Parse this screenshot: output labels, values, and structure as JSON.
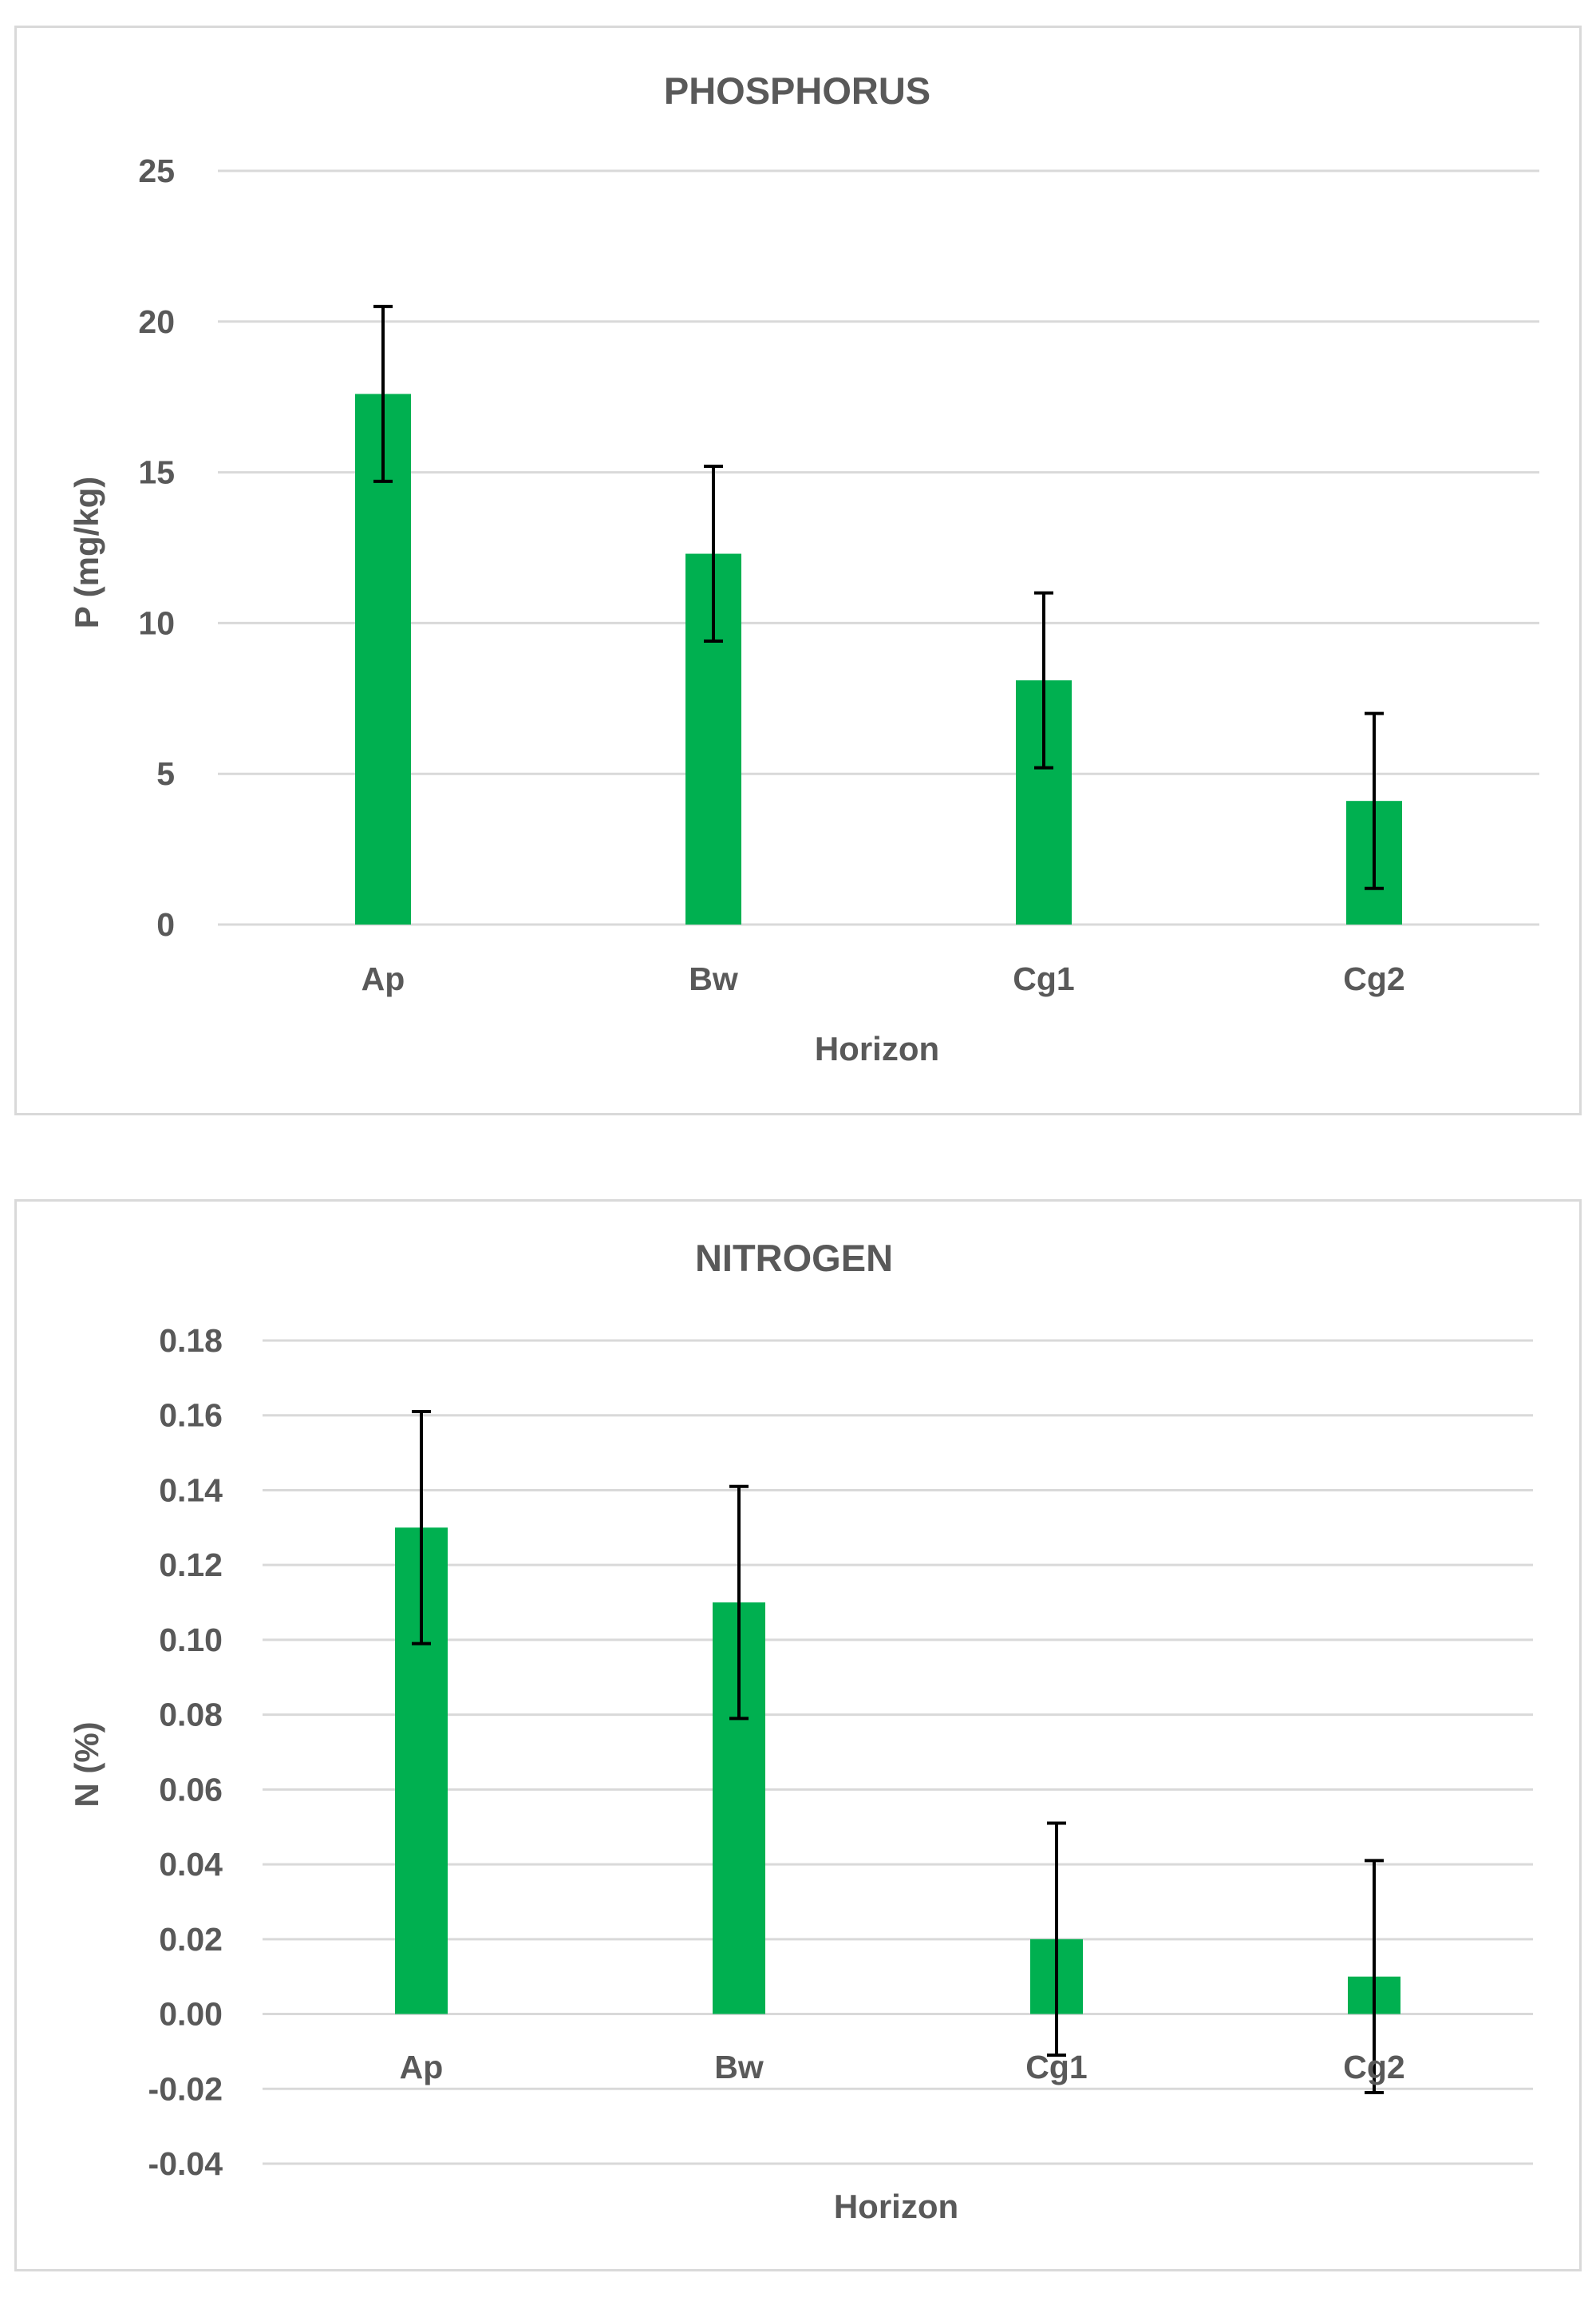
{
  "chart_data": [
    {
      "type": "bar",
      "title": "PHOSPHORUS",
      "xlabel": "Horizon",
      "ylabel": "P  (mg/kg)",
      "categories": [
        "Ap",
        "Bw",
        "Cg1",
        "Cg2"
      ],
      "values": [
        17.6,
        12.3,
        8.1,
        4.1
      ],
      "error": [
        2.9,
        2.9,
        2.9,
        2.9
      ],
      "ylim": [
        0,
        25
      ],
      "yticks": [
        "0",
        "5",
        "10",
        "15",
        "20",
        "25"
      ],
      "grid": true,
      "color": "#00b050"
    },
    {
      "type": "bar",
      "title": "NITROGEN",
      "xlabel": "Horizon",
      "ylabel": "N (%)",
      "categories": [
        "Ap",
        "Bw",
        "Cg1",
        "Cg2"
      ],
      "values": [
        0.13,
        0.11,
        0.02,
        0.01
      ],
      "error": [
        0.031,
        0.031,
        0.031,
        0.031
      ],
      "ylim": [
        -0.04,
        0.18
      ],
      "yticks": [
        "-0.04",
        "-0.02",
        "0.00",
        "0.02",
        "0.04",
        "0.06",
        "0.08",
        "0.10",
        "0.12",
        "0.14",
        "0.16",
        "0.18"
      ],
      "grid": true,
      "color": "#00b050"
    }
  ]
}
